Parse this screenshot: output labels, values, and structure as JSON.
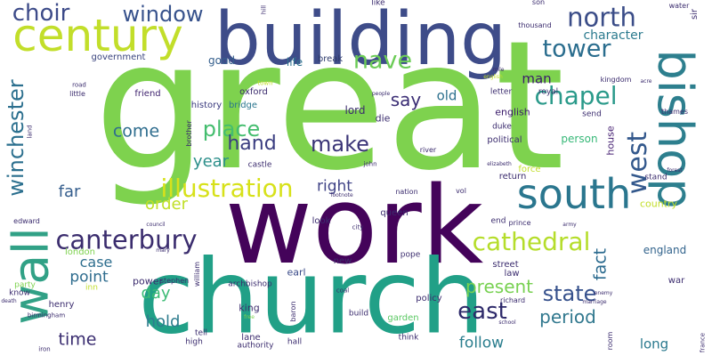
{
  "words": [
    {
      "text": "great",
      "color": "#7ed24e",
      "rot": 0
    },
    {
      "text": "work",
      "color": "#44035a",
      "rot": 0
    },
    {
      "text": "church",
      "color": "#21a087",
      "rot": 0
    },
    {
      "text": "building",
      "color": "#3e4c89",
      "rot": 0
    },
    {
      "text": "century",
      "color": "#c2de2a",
      "rot": 0
    },
    {
      "text": "bishop",
      "color": "#2d7f8e",
      "rot": 90
    },
    {
      "text": "south",
      "color": "#2a768e",
      "rot": 0
    },
    {
      "text": "wall",
      "color": "#31a186",
      "rot": -90
    },
    {
      "text": "canterbury",
      "color": "#3b2d6e",
      "rot": 0
    },
    {
      "text": "illustration",
      "color": "#d7e11a",
      "rot": 0
    },
    {
      "text": "chapel",
      "color": "#2a9a8a",
      "rot": 0
    },
    {
      "text": "cathedral",
      "color": "#b5dd2b",
      "rot": 0
    },
    {
      "text": "winchester",
      "color": "#2b6f8e",
      "rot": -90
    },
    {
      "text": "north",
      "color": "#3b4d88",
      "rot": 0
    },
    {
      "text": "window",
      "color": "#37528c",
      "rot": 0
    },
    {
      "text": "tower",
      "color": "#2a6d8e",
      "rot": 0
    },
    {
      "text": "choir",
      "color": "#3d4b89",
      "rot": 0
    },
    {
      "text": "nave",
      "color": "#6ccc57",
      "rot": 0
    },
    {
      "text": "place",
      "color": "#44bd6e",
      "rot": 0
    },
    {
      "text": "make",
      "color": "#3a3477",
      "rot": 0
    },
    {
      "text": "hand",
      "color": "#3a3d80",
      "rot": 0
    },
    {
      "text": "east",
      "color": "#2e2a6a",
      "rot": 0
    },
    {
      "text": "west",
      "color": "#33588c",
      "rot": -90
    },
    {
      "text": "state",
      "color": "#36518c",
      "rot": 0
    },
    {
      "text": "present",
      "color": "#78d152",
      "rot": 0
    },
    {
      "text": "come",
      "color": "#2f6d8e",
      "rot": 0
    },
    {
      "text": "say",
      "color": "#3b2e75",
      "rot": 0
    },
    {
      "text": "period",
      "color": "#31788e",
      "rot": 0
    },
    {
      "text": "time",
      "color": "#3a2d70",
      "rot": 0
    },
    {
      "text": "year",
      "color": "#2c8f8a",
      "rot": 0
    },
    {
      "text": "right",
      "color": "#414487",
      "rot": 0
    },
    {
      "text": "far",
      "color": "#355e8d",
      "rot": 0
    },
    {
      "text": "order",
      "color": "#c0df26",
      "rot": 0
    },
    {
      "text": "day",
      "color": "#3cbb75",
      "rot": 0
    },
    {
      "text": "hold",
      "color": "#2e7c8e",
      "rot": 0
    },
    {
      "text": "point",
      "color": "#2e6c8e",
      "rot": 0
    },
    {
      "text": "case",
      "color": "#2e6e8e",
      "rot": 0
    },
    {
      "text": "follow",
      "color": "#2b7e8e",
      "rot": 0
    },
    {
      "text": "fact",
      "color": "#2a6a8e",
      "rot": -90
    },
    {
      "text": "character",
      "color": "#2b7a8e",
      "rot": 0
    },
    {
      "text": "man",
      "color": "#3b1c6b",
      "rot": 0
    },
    {
      "text": "old",
      "color": "#2d708e",
      "rot": 0
    },
    {
      "text": "long",
      "color": "#2a798e",
      "rot": 0
    },
    {
      "text": "good",
      "color": "#355f8d",
      "rot": 0
    },
    {
      "text": "life",
      "color": "#2c728e",
      "rot": 0
    },
    {
      "text": "lord",
      "color": "#3b2c6e",
      "rot": 0
    },
    {
      "text": "england",
      "color": "#33648d",
      "rot": 0
    },
    {
      "text": "house",
      "color": "#482374",
      "rot": -90
    },
    {
      "text": "person",
      "color": "#37b878",
      "rot": 0
    },
    {
      "text": "english",
      "color": "#3b1c6b",
      "rot": 0
    },
    {
      "text": "history",
      "color": "#3a3a7e",
      "rot": 0
    },
    {
      "text": "friend",
      "color": "#40246f",
      "rot": 0
    },
    {
      "text": "oxford",
      "color": "#3b2c6d",
      "rot": 0
    },
    {
      "text": "bridge",
      "color": "#2a768e",
      "rot": 0
    },
    {
      "text": "government",
      "color": "#3a447e",
      "rot": 0
    },
    {
      "text": "break",
      "color": "#2d3a6b",
      "rot": 0
    },
    {
      "text": "king",
      "color": "#3d2d6e",
      "rot": 0
    },
    {
      "text": "power",
      "color": "#3b2c6e",
      "rot": 0
    },
    {
      "text": "new",
      "color": "#3d2e6c",
      "rot": 0
    },
    {
      "text": "earl",
      "color": "#3b4b89",
      "rot": 0
    },
    {
      "text": "lane",
      "color": "#3b2c6e",
      "rot": 0
    },
    {
      "text": "hall",
      "color": "#3b2c6e",
      "rot": 0
    },
    {
      "text": "think",
      "color": "#3b2c6e",
      "rot": 0
    },
    {
      "text": "garden",
      "color": "#5bc863",
      "rot": 0
    },
    {
      "text": "build",
      "color": "#3b2c6e",
      "rot": 0
    },
    {
      "text": "authority",
      "color": "#3b2c6e",
      "rot": 0
    },
    {
      "text": "tell",
      "color": "#3b2c6e",
      "rot": 0
    },
    {
      "text": "high",
      "color": "#3b2c6e",
      "rot": 0
    },
    {
      "text": "henry",
      "color": "#3b2c6e",
      "rot": 0
    },
    {
      "text": "party",
      "color": "#7ed24e",
      "rot": 0
    },
    {
      "text": "know",
      "color": "#3b2c6e",
      "rot": 0
    },
    {
      "text": "inn",
      "color": "#c2de2a",
      "rot": 0
    },
    {
      "text": "london",
      "color": "#7ed24e",
      "rot": 0
    },
    {
      "text": "archbishop",
      "color": "#3b2c6e",
      "rot": 0
    },
    {
      "text": "stephen",
      "color": "#3b2c6e",
      "rot": 0
    },
    {
      "text": "william",
      "color": "#3b2c6e",
      "rot": -90
    },
    {
      "text": "baron",
      "color": "#3b2c6e",
      "rot": -90
    },
    {
      "text": "pope",
      "color": "#3b2c6e",
      "rot": 0
    },
    {
      "text": "queen",
      "color": "#3b2c6e",
      "rot": 0
    },
    {
      "text": "nation",
      "color": "#3b2c6e",
      "rot": 0
    },
    {
      "text": "look",
      "color": "#3b2c6e",
      "rot": 0
    },
    {
      "text": "vol",
      "color": "#3b2c6e",
      "rot": 0
    },
    {
      "text": "street",
      "color": "#3b2c6e",
      "rot": 0
    },
    {
      "text": "law",
      "color": "#3b2c6e",
      "rot": 0
    },
    {
      "text": "policy",
      "color": "#3b2c6e",
      "rot": 0
    },
    {
      "text": "richard",
      "color": "#3b2c6e",
      "rot": 0
    },
    {
      "text": "war",
      "color": "#3b2c6e",
      "rot": 0
    },
    {
      "text": "room",
      "color": "#3b2c6e",
      "rot": -90
    },
    {
      "text": "return",
      "color": "#3b2c6e",
      "rot": 0
    },
    {
      "text": "end",
      "color": "#3b2c6e",
      "rot": 0
    },
    {
      "text": "prince",
      "color": "#3b2c6e",
      "rot": 0
    },
    {
      "text": "country",
      "color": "#c2de2a",
      "rot": 0
    },
    {
      "text": "stand",
      "color": "#3b2c6e",
      "rot": 0
    },
    {
      "text": "force",
      "color": "#c2de2a",
      "rot": 0
    },
    {
      "text": "political",
      "color": "#3b2c6e",
      "rot": 0
    },
    {
      "text": "duke",
      "color": "#3b2c6e",
      "rot": 0
    },
    {
      "text": "letter",
      "color": "#3b2c6e",
      "rot": 0
    },
    {
      "text": "send",
      "color": "#3b2c6e",
      "rot": 0
    },
    {
      "text": "royal",
      "color": "#3b2c6e",
      "rot": 0
    },
    {
      "text": "thousand",
      "color": "#3b2c6e",
      "rot": 0
    },
    {
      "text": "son",
      "color": "#3b2c6e",
      "rot": 0
    },
    {
      "text": "like",
      "color": "#3b2c6e",
      "rot": 0
    },
    {
      "text": "kingdom",
      "color": "#3b2c6e",
      "rot": 0
    },
    {
      "text": "thames",
      "color": "#3b2c6e",
      "rot": 0
    },
    {
      "text": "sir",
      "color": "#3b2c6e",
      "rot": -90
    },
    {
      "text": "water",
      "color": "#3b2c6e",
      "rot": 0
    },
    {
      "text": "castle",
      "color": "#3b2c6e",
      "rot": 0
    },
    {
      "text": "river",
      "color": "#3b2c6e",
      "rot": 0
    },
    {
      "text": "die",
      "color": "#3b2c6e",
      "rot": 0
    },
    {
      "text": "brother",
      "color": "#3b2c6e",
      "rot": -90
    },
    {
      "text": "town",
      "color": "#c2de2a",
      "rot": 0
    },
    {
      "text": "hill",
      "color": "#3b2c6e",
      "rot": -90
    },
    {
      "text": "little",
      "color": "#3b2c6e",
      "rot": 0
    },
    {
      "text": "edward",
      "color": "#3b2c6e",
      "rot": 0
    },
    {
      "text": "land",
      "color": "#3b2c6e",
      "rot": -90
    },
    {
      "text": "road",
      "color": "#3b2c6e",
      "rot": 0
    },
    {
      "text": "birmingham",
      "color": "#3b2c6e",
      "rot": 0
    },
    {
      "text": "iron",
      "color": "#3b2c6e",
      "rot": 0
    },
    {
      "text": "death",
      "color": "#3b2c6e",
      "rot": 0
    },
    {
      "text": "coal",
      "color": "#3b2c6e",
      "rot": 0
    },
    {
      "text": "free",
      "color": "#7ed24e",
      "rot": 0
    },
    {
      "text": "school",
      "color": "#3b2c6e",
      "rot": 0
    },
    {
      "text": "city",
      "color": "#3b2c6e",
      "rot": 0
    },
    {
      "text": "council",
      "color": "#3b2c6e",
      "rot": 0
    },
    {
      "text": "mary",
      "color": "#3b2c6e",
      "rot": 0
    },
    {
      "text": "elizabeth",
      "color": "#3b2c6e",
      "rot": 0
    },
    {
      "text": "enemy",
      "color": "#3b2c6e",
      "rot": 0
    },
    {
      "text": "marriage",
      "color": "#3b2c6e",
      "rot": 0
    },
    {
      "text": "france",
      "color": "#3b2c6e",
      "rot": -90
    },
    {
      "text": "acre",
      "color": "#3b2c6e",
      "rot": 0
    },
    {
      "text": "mile",
      "color": "#3b2c6e",
      "rot": 0
    },
    {
      "text": "forest",
      "color": "#3b2c6e",
      "rot": 0
    },
    {
      "text": "footnote",
      "color": "#3b2c6e",
      "rot": 0
    },
    {
      "text": "john",
      "color": "#3b2c6e",
      "rot": 0
    },
    {
      "text": "people",
      "color": "#3b2c6e",
      "rot": 0
    },
    {
      "text": "army",
      "color": "#3b2c6e",
      "rot": 0
    },
    {
      "text": "english",
      "color": "#c2de2a",
      "rot": 0
    }
  ]
}
